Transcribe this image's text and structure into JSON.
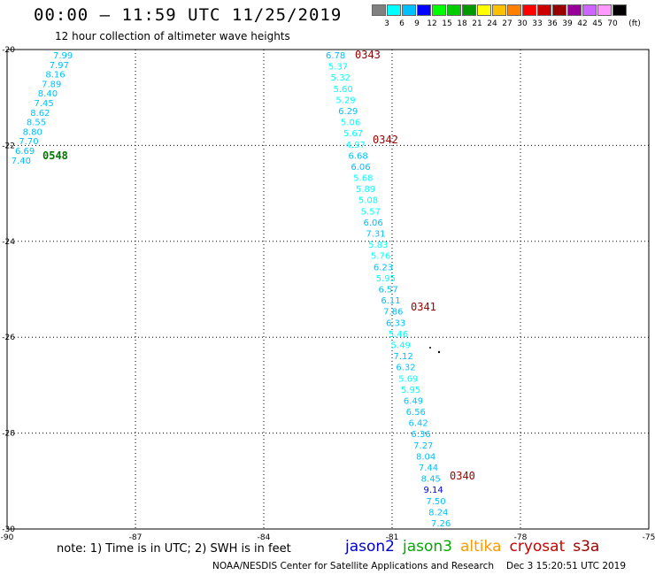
{
  "title": "00:00 – 11:59 UTC 11/25/2019",
  "subtitle": "12 hour collection of altimeter wave heights",
  "scale": {
    "colors": [
      "#808080",
      "#00ffff",
      "#00c0ff",
      "#0000ff",
      "#00ff00",
      "#00cc00",
      "#009900",
      "#ffff00",
      "#ffc000",
      "#ff8000",
      "#ff0000",
      "#cc0000",
      "#990000",
      "#990099",
      "#cc66ff",
      "#ff99ff",
      "#000000"
    ],
    "labels": [
      "3",
      "6",
      "9",
      "12",
      "15",
      "18",
      "21",
      "24",
      "27",
      "30",
      "33",
      "36",
      "39",
      "42",
      "45",
      "70"
    ],
    "unit": "(ft)"
  },
  "axes": {
    "x_ticks": [
      "-90",
      "-87",
      "-84",
      "-81",
      "-78",
      "-75"
    ],
    "y_ticks": [
      "-20",
      "-22",
      "-24",
      "-26",
      "-28",
      "-30"
    ]
  },
  "tracks": [
    {
      "pass_label": "0548",
      "pass_color": "#007700",
      "values": [
        "7.99",
        "7.97",
        "8.16",
        "7.89",
        "8.40",
        "7.45",
        "8.62",
        "8.55",
        "8.80",
        "7.70",
        "6.69",
        "7.40"
      ]
    },
    {
      "pass_label_list": [
        "0343",
        "0342",
        "0341",
        "0340"
      ],
      "values": [
        "6.78",
        "5.37",
        "5.32",
        "5.60",
        "5.29",
        "6.29",
        "5.06",
        "5.67",
        "4.97",
        "6.68",
        "6.06",
        "5.68",
        "5.89",
        "5.08",
        "5.57",
        "6.06",
        "7.31",
        "5.83",
        "5.76",
        "6.23",
        "5.95",
        "6.57",
        "6.11",
        "7.86",
        "6.33",
        "5.46",
        "5.49",
        "7.12",
        "6.32",
        "5.69",
        "5.95",
        "6.49",
        "6.56",
        "6.42",
        "6.36",
        "7.27",
        "8.04",
        "7.44",
        "8.45",
        "9.14",
        "7.50",
        "8.24",
        "7.26"
      ]
    }
  ],
  "pass_color_cryosat": "#990000",
  "note": "note: 1) Time is in UTC; 2) SWH is in feet",
  "satellites": [
    {
      "name": "jason2",
      "color": "#0000cc"
    },
    {
      "name": "jason3",
      "color": "#00aa00"
    },
    {
      "name": "altika",
      "color": "#ff9900"
    },
    {
      "name": "cryosat",
      "color": "#cc0000"
    },
    {
      "name": "s3a",
      "color": "#990000"
    }
  ],
  "footer_org": "NOAA/NESDIS Center for Satellite Applications and Research",
  "footer_time": "Dec  3 15:20:51 UTC 2019"
}
